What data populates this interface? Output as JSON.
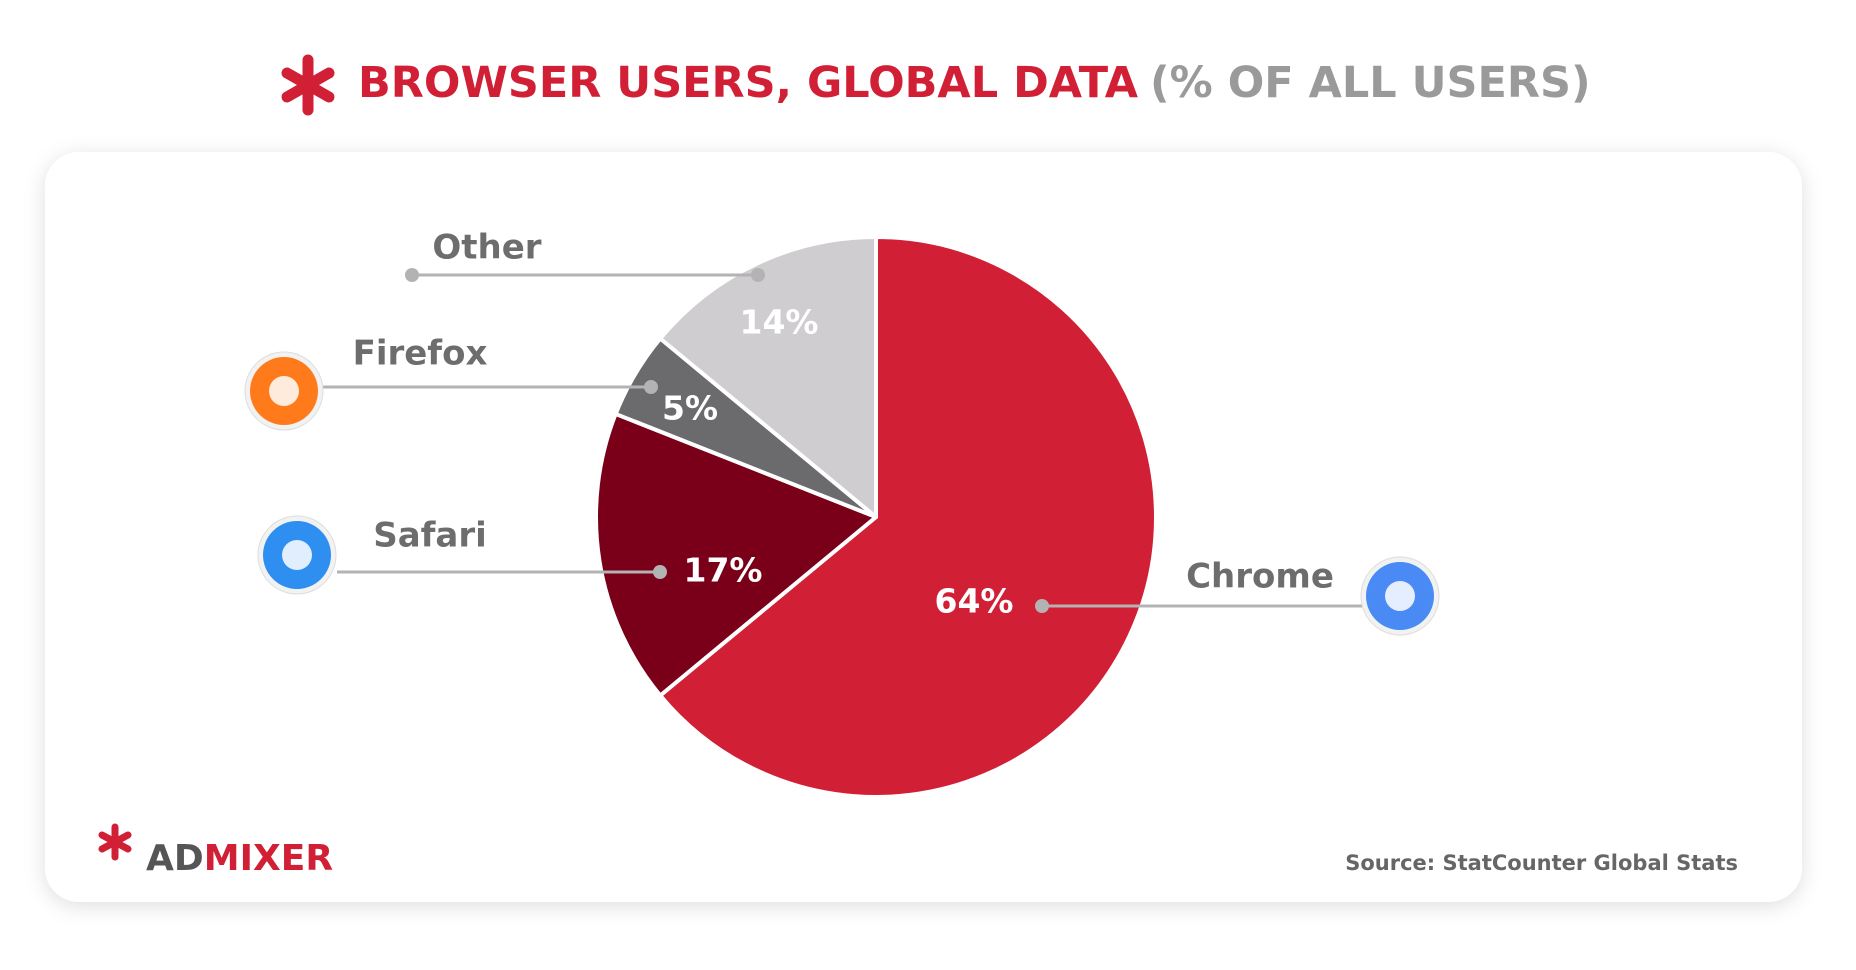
{
  "chart_data": {
    "type": "pie",
    "title": "BROWSER USERS, GLOBAL DATA",
    "subtitle": "(% OF ALL USERS)",
    "categories": [
      "Chrome",
      "Safari",
      "Firefox",
      "Other"
    ],
    "values": [
      64,
      17,
      5,
      14
    ],
    "value_labels": [
      "64%",
      "17%",
      "5%",
      "14%"
    ],
    "colors": [
      "#d11f35",
      "#7a0019",
      "#6b6a6c",
      "#cfcdd0"
    ],
    "source": "Source: StatCounter Global Stats",
    "logo": {
      "prefix": "AD",
      "suffix": "MIXER"
    }
  }
}
